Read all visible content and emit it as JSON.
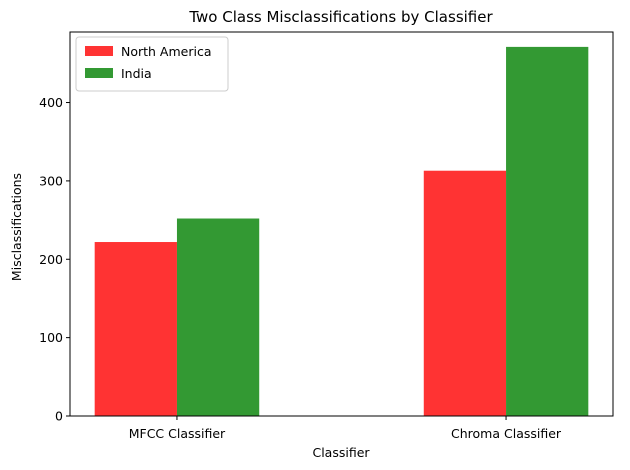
{
  "chart_data": {
    "type": "bar",
    "title": "Two Class Misclassifications by Classifier",
    "xlabel": "Classifier",
    "ylabel": "Misclassifications",
    "categories": [
      "MFCC Classifier",
      "Chroma Classifier"
    ],
    "series": [
      {
        "name": "North America",
        "values": [
          222,
          313
        ],
        "color": "#ff3333"
      },
      {
        "name": "India",
        "values": [
          252,
          471
        ],
        "color": "#339933"
      }
    ],
    "ylim": [
      0,
      490
    ],
    "yticks": [
      0,
      100,
      200,
      300,
      400
    ],
    "legend": "top-left",
    "grid": false
  }
}
